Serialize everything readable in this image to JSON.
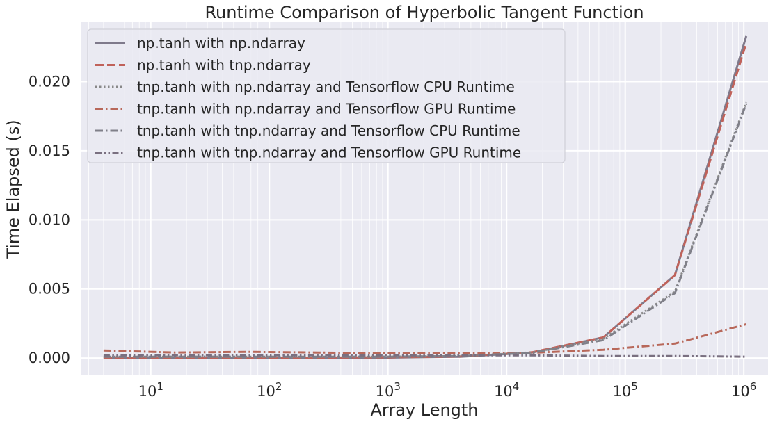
{
  "chart_data": {
    "type": "line",
    "title": "Runtime Comparison of Hyperbolic Tangent Function",
    "xlabel": "Array Length",
    "ylabel": "Time Elapsed (s)",
    "xscale": "log",
    "xlim": [
      2.6,
      1600000
    ],
    "ylim": [
      -0.0012,
      0.0243
    ],
    "grid": true,
    "legend_position": "top-left",
    "background_color": "#eaeaf2",
    "grid_color": "#ffffff",
    "x_ticks": [
      10,
      100,
      1000,
      10000,
      100000,
      1000000
    ],
    "x_tick_labels": [
      {
        "base": "10",
        "exp": "1"
      },
      {
        "base": "10",
        "exp": "2"
      },
      {
        "base": "10",
        "exp": "3"
      },
      {
        "base": "10",
        "exp": "4"
      },
      {
        "base": "10",
        "exp": "5"
      },
      {
        "base": "10",
        "exp": "6"
      }
    ],
    "y_ticks": [
      0.0,
      0.005,
      0.01,
      0.015,
      0.02
    ],
    "y_tick_labels": [
      "0.000",
      "0.005",
      "0.010",
      "0.015",
      "0.020"
    ],
    "x": [
      4,
      16,
      64,
      256,
      1024,
      4096,
      16384,
      65536,
      262144,
      1048576
    ],
    "series": [
      {
        "name": "np.tanh with np.ndarray",
        "color": "#7f7a8b",
        "dash": "solid",
        "values": [
          0.0,
          0.0,
          0.0,
          1e-05,
          3e-05,
          0.0001,
          0.0004,
          0.0015,
          0.006,
          0.0233
        ]
      },
      {
        "name": "np.tanh with tnp.ndarray",
        "color": "#c0625a",
        "dash": "dashed",
        "values": [
          2e-05,
          2e-05,
          2e-05,
          3e-05,
          5e-05,
          0.00012,
          0.00042,
          0.0015,
          0.006,
          0.0228
        ]
      },
      {
        "name": "tnp.tanh with np.ndarray and Tensorflow CPU Runtime",
        "color": "#888888",
        "dash": "dotted",
        "values": [
          0.0001,
          0.0001,
          0.0001,
          0.0001,
          0.0001,
          0.00015,
          0.0004,
          0.0014,
          0.0048,
          0.0185
        ]
      },
      {
        "name": "tnp.tanh with np.ndarray and Tensorflow GPU Runtime",
        "color": "#b8685a",
        "dash": "dashdot",
        "values": [
          0.00055,
          0.0004,
          0.00045,
          0.0004,
          0.00035,
          0.00035,
          0.00038,
          0.0006,
          0.00105,
          0.00245
        ]
      },
      {
        "name": "tnp.tanh with tnp.ndarray and Tensorflow CPU Runtime",
        "color": "#808089",
        "dash": "dashdot",
        "values": [
          0.0001,
          0.0001,
          0.0001,
          0.0001,
          0.0001,
          0.00015,
          0.00038,
          0.0013,
          0.0047,
          0.0184
        ]
      },
      {
        "name": "tnp.tanh with tnp.ndarray and Tensorflow GPU Runtime",
        "color": "#7a7080",
        "dash": "dashdotdot",
        "values": [
          0.0002,
          0.0002,
          0.0002,
          0.0002,
          0.0002,
          0.0002,
          0.0002,
          0.00015,
          0.00015,
          0.0001
        ]
      }
    ]
  }
}
